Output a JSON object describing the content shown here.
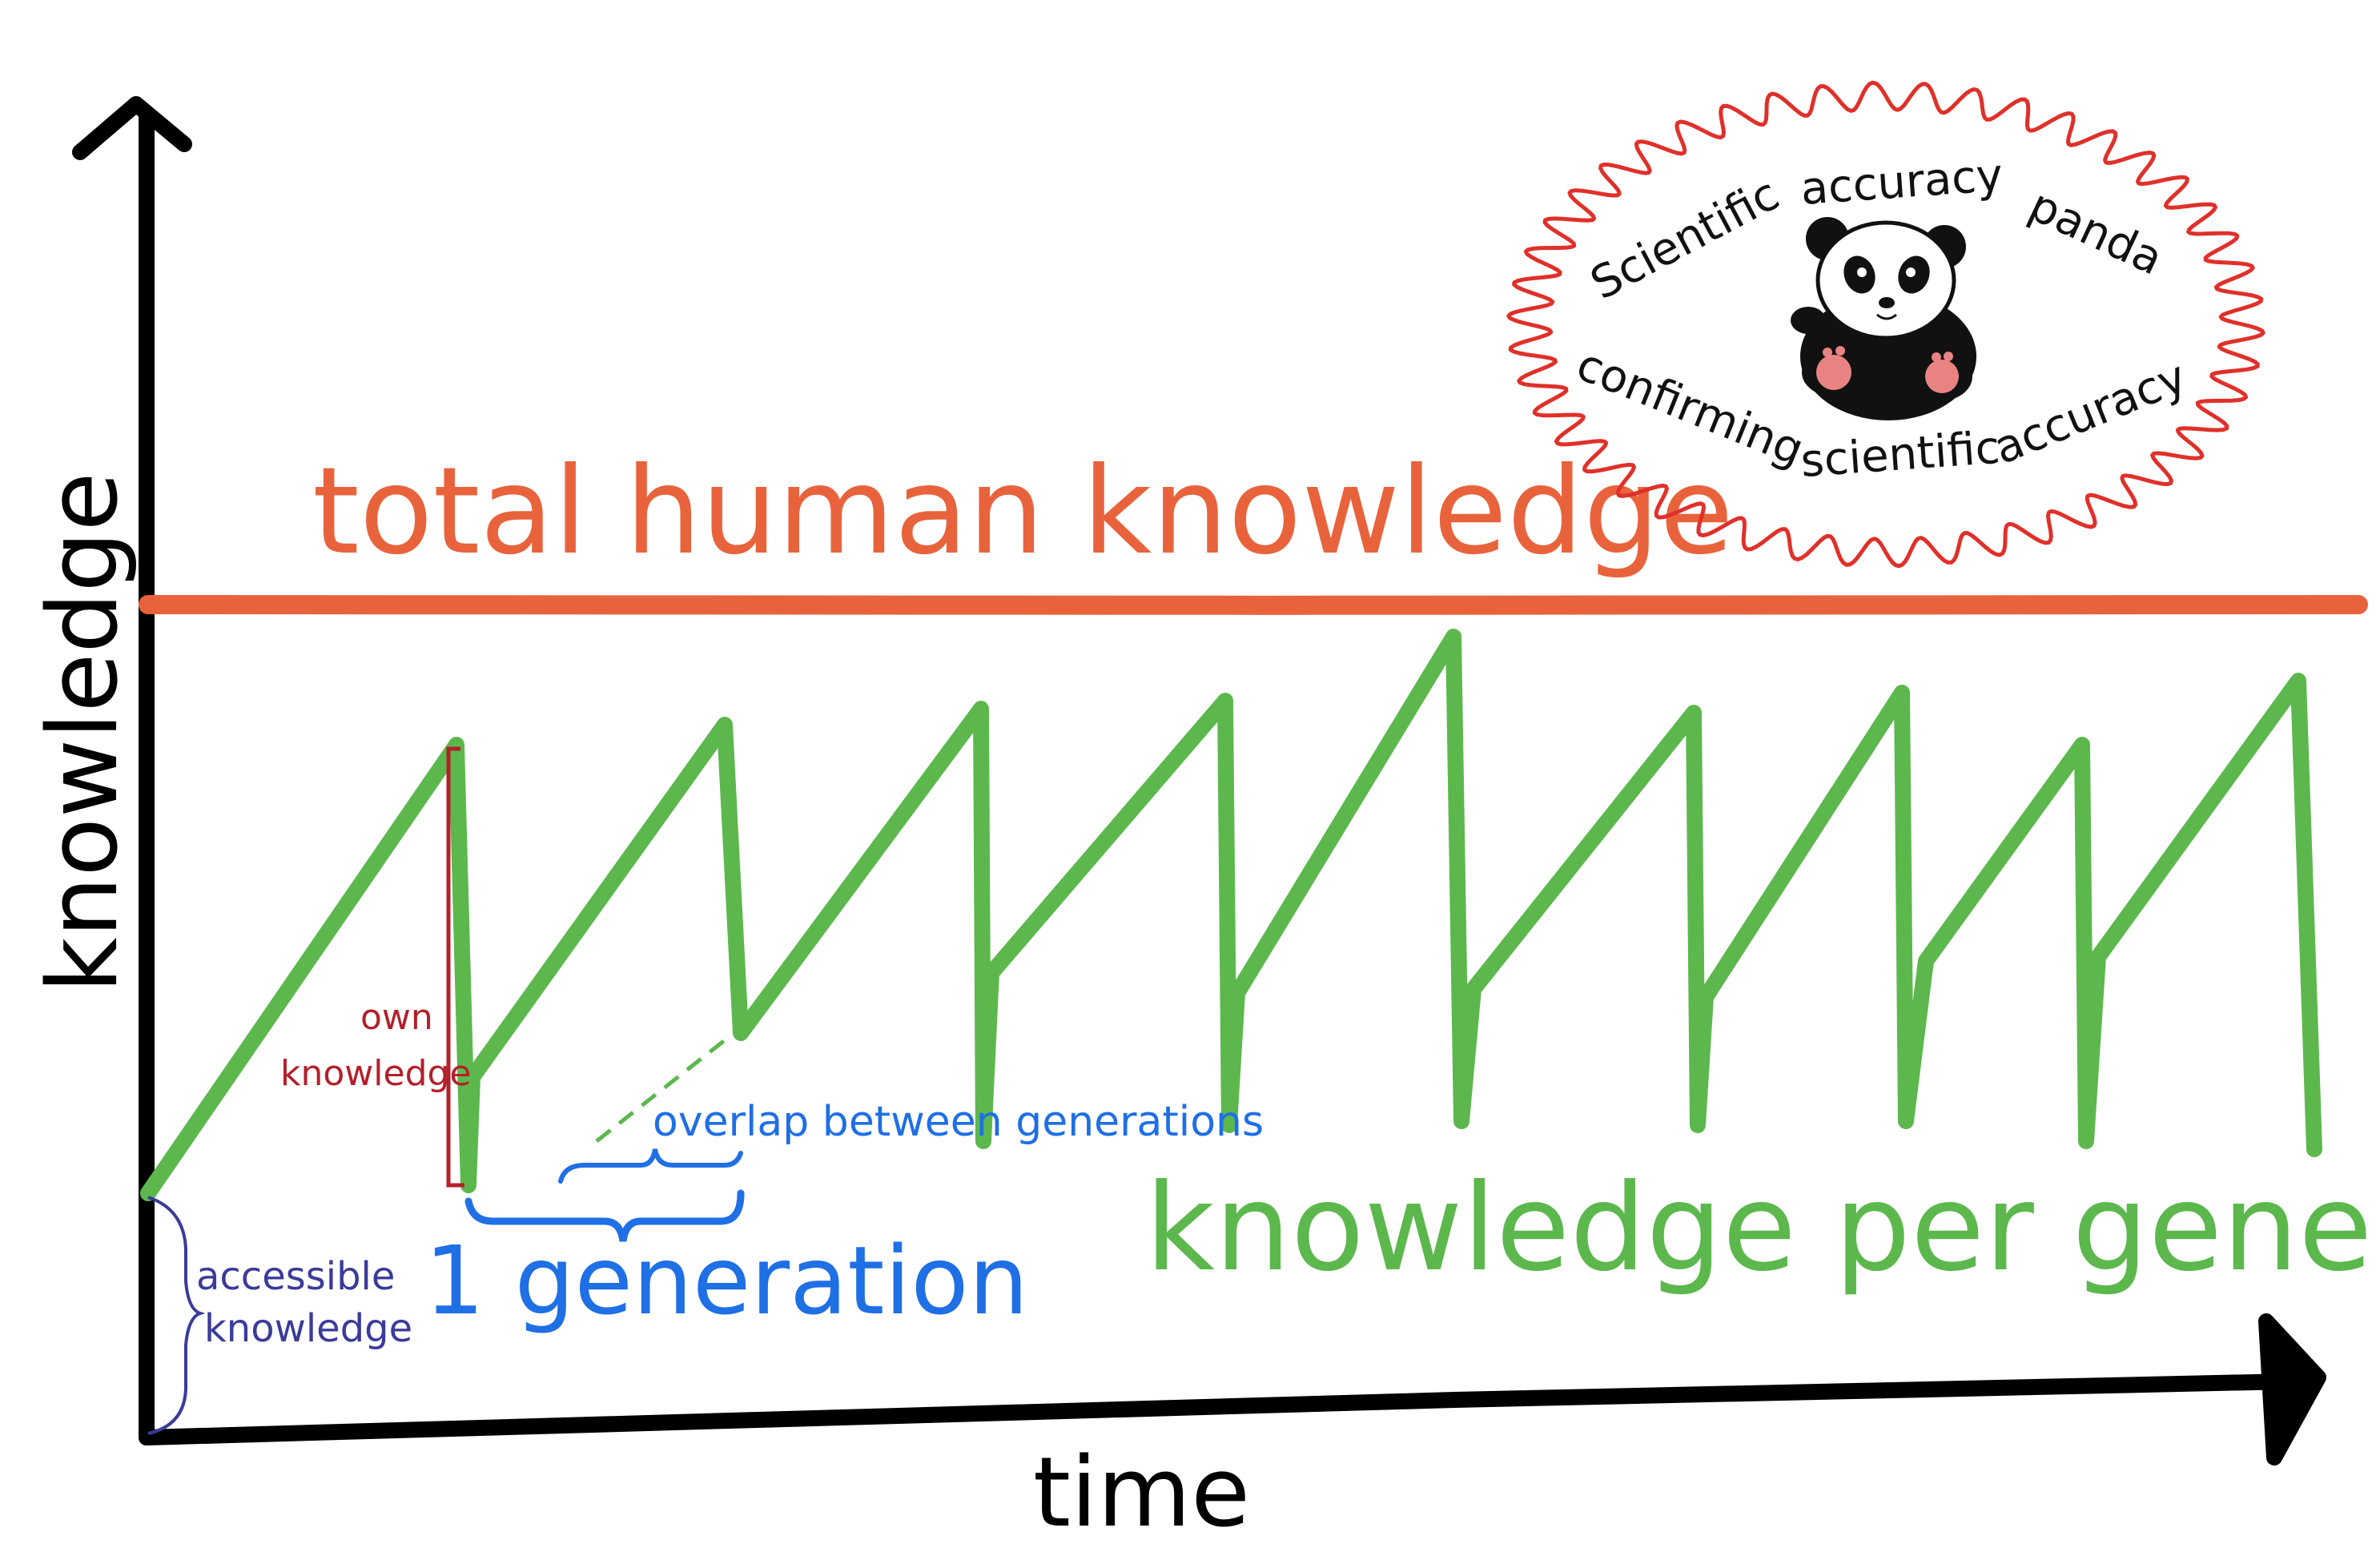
{
  "axes": {
    "y_label": "knowledge",
    "x_label": "time"
  },
  "labels": {
    "total": "total human knowledge",
    "per_generation": "knowledge per generation",
    "one_generation": "1 generation",
    "overlap": "overlap between generations",
    "own_line1": "own",
    "own_line2": "knowledge",
    "accessible_line1": "accessible",
    "accessible_line2": "knowledge"
  },
  "panda_stamp": {
    "words": [
      "Scientific",
      "accuracy",
      "panda",
      "confirming",
      "scientific",
      "accuracy"
    ]
  },
  "colors": {
    "total_line": "#e8633c",
    "generation_line": "#5cb84d",
    "generation_label": "#1f6fe5",
    "own_knowledge": "#b3202a",
    "accessible_knowledge": "#3b3b9a",
    "stamp_border": "#e0302a",
    "axes": "#000000"
  },
  "icons": [
    "panda-icon",
    "up-arrow-icon",
    "right-arrow-icon"
  ]
}
